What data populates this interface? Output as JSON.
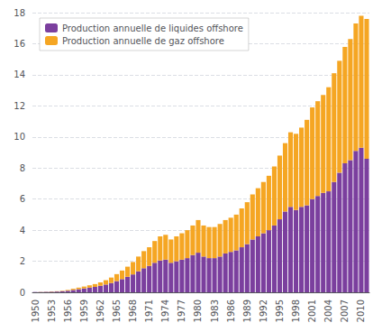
{
  "chart_data": {
    "type": "bar",
    "stacked": true,
    "grid": true,
    "legend": "upper left",
    "categories": [
      "1950",
      null,
      null,
      "1953",
      null,
      null,
      "1956",
      null,
      null,
      "1959",
      null,
      null,
      "1962",
      null,
      null,
      "1965",
      null,
      null,
      "1968",
      null,
      null,
      "1971",
      null,
      null,
      "1974",
      null,
      null,
      "1977",
      null,
      null,
      "1980",
      null,
      null,
      "1983",
      null,
      null,
      "1986",
      null,
      null,
      "1989",
      null,
      null,
      "1992",
      null,
      null,
      "1995",
      null,
      null,
      "1998",
      null,
      null,
      "2001",
      null,
      null,
      "2004",
      null,
      null,
      "2007",
      null,
      null,
      "2010",
      null
    ],
    "series": [
      {
        "name": "Production annuelle de liquides offshore",
        "color": "#7B3F9E",
        "values": [
          0.02,
          0.02,
          0.03,
          0.04,
          0.05,
          0.07,
          0.1,
          0.15,
          0.2,
          0.25,
          0.3,
          0.35,
          0.42,
          0.5,
          0.6,
          0.72,
          0.85,
          1.0,
          1.15,
          1.35,
          1.55,
          1.7,
          1.9,
          2.05,
          2.1,
          1.9,
          2.0,
          2.1,
          2.2,
          2.4,
          2.55,
          2.3,
          2.2,
          2.2,
          2.3,
          2.5,
          2.6,
          2.7,
          2.9,
          3.1,
          3.4,
          3.6,
          3.8,
          4.0,
          4.3,
          4.7,
          5.2,
          5.5,
          5.3,
          5.5,
          5.6,
          6.0,
          6.2,
          6.4,
          6.5,
          7.1,
          7.7,
          8.3,
          8.5,
          9.1,
          9.3,
          8.6
        ]
      },
      {
        "name": "Production annuelle de gaz offshore",
        "color": "#F5A623",
        "values": [
          0.0,
          0.01,
          0.01,
          0.02,
          0.02,
          0.03,
          0.05,
          0.08,
          0.1,
          0.12,
          0.15,
          0.18,
          0.22,
          0.28,
          0.35,
          0.45,
          0.55,
          0.65,
          0.8,
          0.95,
          1.1,
          1.2,
          1.4,
          1.55,
          1.6,
          1.5,
          1.6,
          1.7,
          1.8,
          1.9,
          2.1,
          2.0,
          2.0,
          2.0,
          2.1,
          2.15,
          2.2,
          2.3,
          2.5,
          2.7,
          2.9,
          3.1,
          3.3,
          3.5,
          3.8,
          4.1,
          4.4,
          4.8,
          4.9,
          5.1,
          5.5,
          5.9,
          6.1,
          6.3,
          6.7,
          7.0,
          7.2,
          7.5,
          7.8,
          8.2,
          8.5,
          9.0
        ]
      }
    ],
    "ylim": [
      0,
      18
    ],
    "yticks": [
      0,
      2,
      4,
      6,
      8,
      10,
      12,
      14,
      16,
      18
    ]
  }
}
